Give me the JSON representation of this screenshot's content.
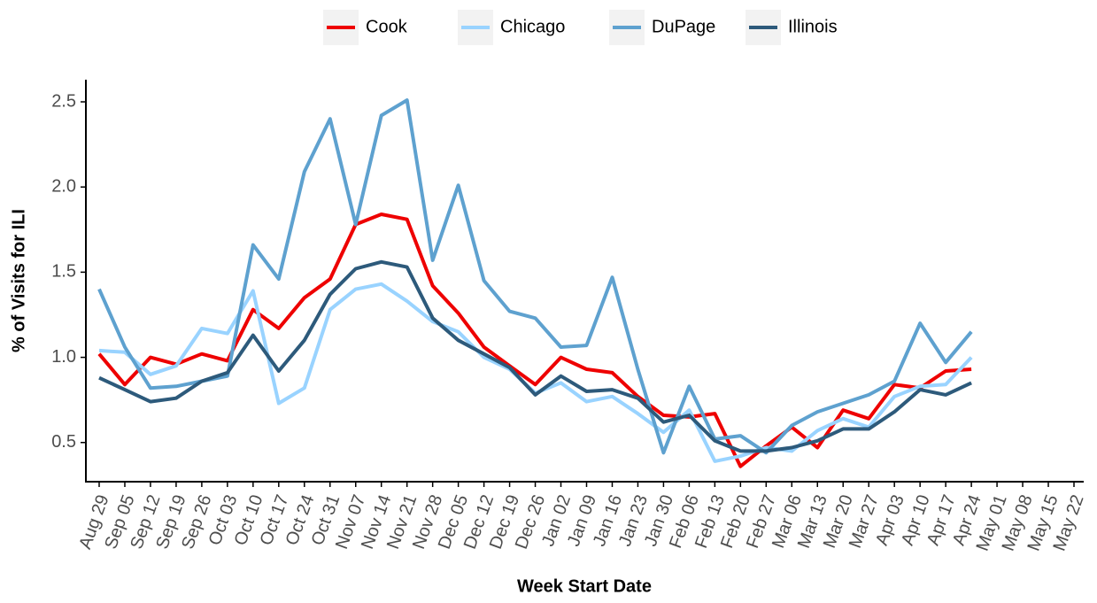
{
  "chart_data": {
    "type": "line",
    "x_label": "Week Start Date",
    "y_label": "% of Visits for ILI",
    "categories": [
      "Aug 29",
      "Sep 05",
      "Sep 12",
      "Sep 19",
      "Sep 26",
      "Oct 03",
      "Oct 10",
      "Oct 17",
      "Oct 24",
      "Oct 31",
      "Nov 07",
      "Nov 14",
      "Nov 21",
      "Nov 28",
      "Dec 05",
      "Dec 12",
      "Dec 19",
      "Dec 26",
      "Jan 02",
      "Jan 09",
      "Jan 16",
      "Jan 23",
      "Jan 30",
      "Feb 06",
      "Feb 13",
      "Feb 20",
      "Feb 27",
      "Mar 06",
      "Mar 13",
      "Mar 20",
      "Mar 27",
      "Apr 03",
      "Apr 10",
      "Apr 17",
      "Apr 24",
      "May 01",
      "May 08",
      "May 15",
      "May 22"
    ],
    "series": [
      {
        "name": "Cook",
        "color": "#ee0000",
        "values": [
          1.02,
          0.84,
          1.0,
          0.96,
          1.02,
          0.98,
          1.28,
          1.17,
          1.35,
          1.46,
          1.78,
          1.84,
          1.81,
          1.42,
          1.26,
          1.06,
          0.95,
          0.84,
          1.0,
          0.93,
          0.91,
          0.77,
          0.66,
          0.65,
          0.67,
          0.36,
          0.48,
          0.59,
          0.47,
          0.69,
          0.64,
          0.84,
          0.82,
          0.92,
          0.93,
          null,
          null,
          null,
          null
        ]
      },
      {
        "name": "Chicago",
        "color": "#99d3ff",
        "values": [
          1.04,
          1.03,
          0.9,
          0.95,
          1.17,
          1.14,
          1.39,
          0.73,
          0.82,
          1.28,
          1.4,
          1.43,
          1.33,
          1.21,
          1.15,
          1.0,
          0.93,
          0.79,
          0.85,
          0.74,
          0.77,
          0.67,
          0.56,
          0.69,
          0.39,
          0.42,
          0.47,
          0.45,
          0.57,
          0.64,
          0.59,
          0.77,
          0.83,
          0.84,
          1.0,
          null,
          null,
          null,
          null
        ]
      },
      {
        "name": "DuPage",
        "color": "#5ea1cf",
        "values": [
          1.4,
          1.06,
          0.82,
          0.83,
          0.86,
          0.89,
          1.66,
          1.46,
          2.09,
          2.4,
          1.78,
          2.42,
          2.51,
          1.57,
          2.01,
          1.45,
          1.27,
          1.23,
          1.06,
          1.07,
          1.47,
          0.93,
          0.44,
          0.83,
          0.52,
          0.54,
          0.44,
          0.6,
          0.68,
          0.73,
          0.78,
          0.86,
          1.2,
          0.97,
          1.15,
          null,
          null,
          null,
          null
        ]
      },
      {
        "name": "Illinois",
        "color": "#2d5a7b",
        "values": [
          0.88,
          0.81,
          0.74,
          0.76,
          0.86,
          0.91,
          1.13,
          0.92,
          1.1,
          1.37,
          1.52,
          1.56,
          1.53,
          1.23,
          1.1,
          1.02,
          0.94,
          0.78,
          0.89,
          0.8,
          0.81,
          0.76,
          0.62,
          0.66,
          0.51,
          0.45,
          0.45,
          0.47,
          0.51,
          0.58,
          0.58,
          0.68,
          0.81,
          0.78,
          0.85,
          null,
          null,
          null,
          null
        ]
      }
    ],
    "ylim": [
      0.27,
      2.63
    ],
    "yticks": [
      0.5,
      {
        "value": 1,
        "label": "1.0"
      },
      1.5,
      {
        "value": 2,
        "label": "2.0"
      },
      2.5
    ],
    "legend": "top",
    "grid": false
  }
}
